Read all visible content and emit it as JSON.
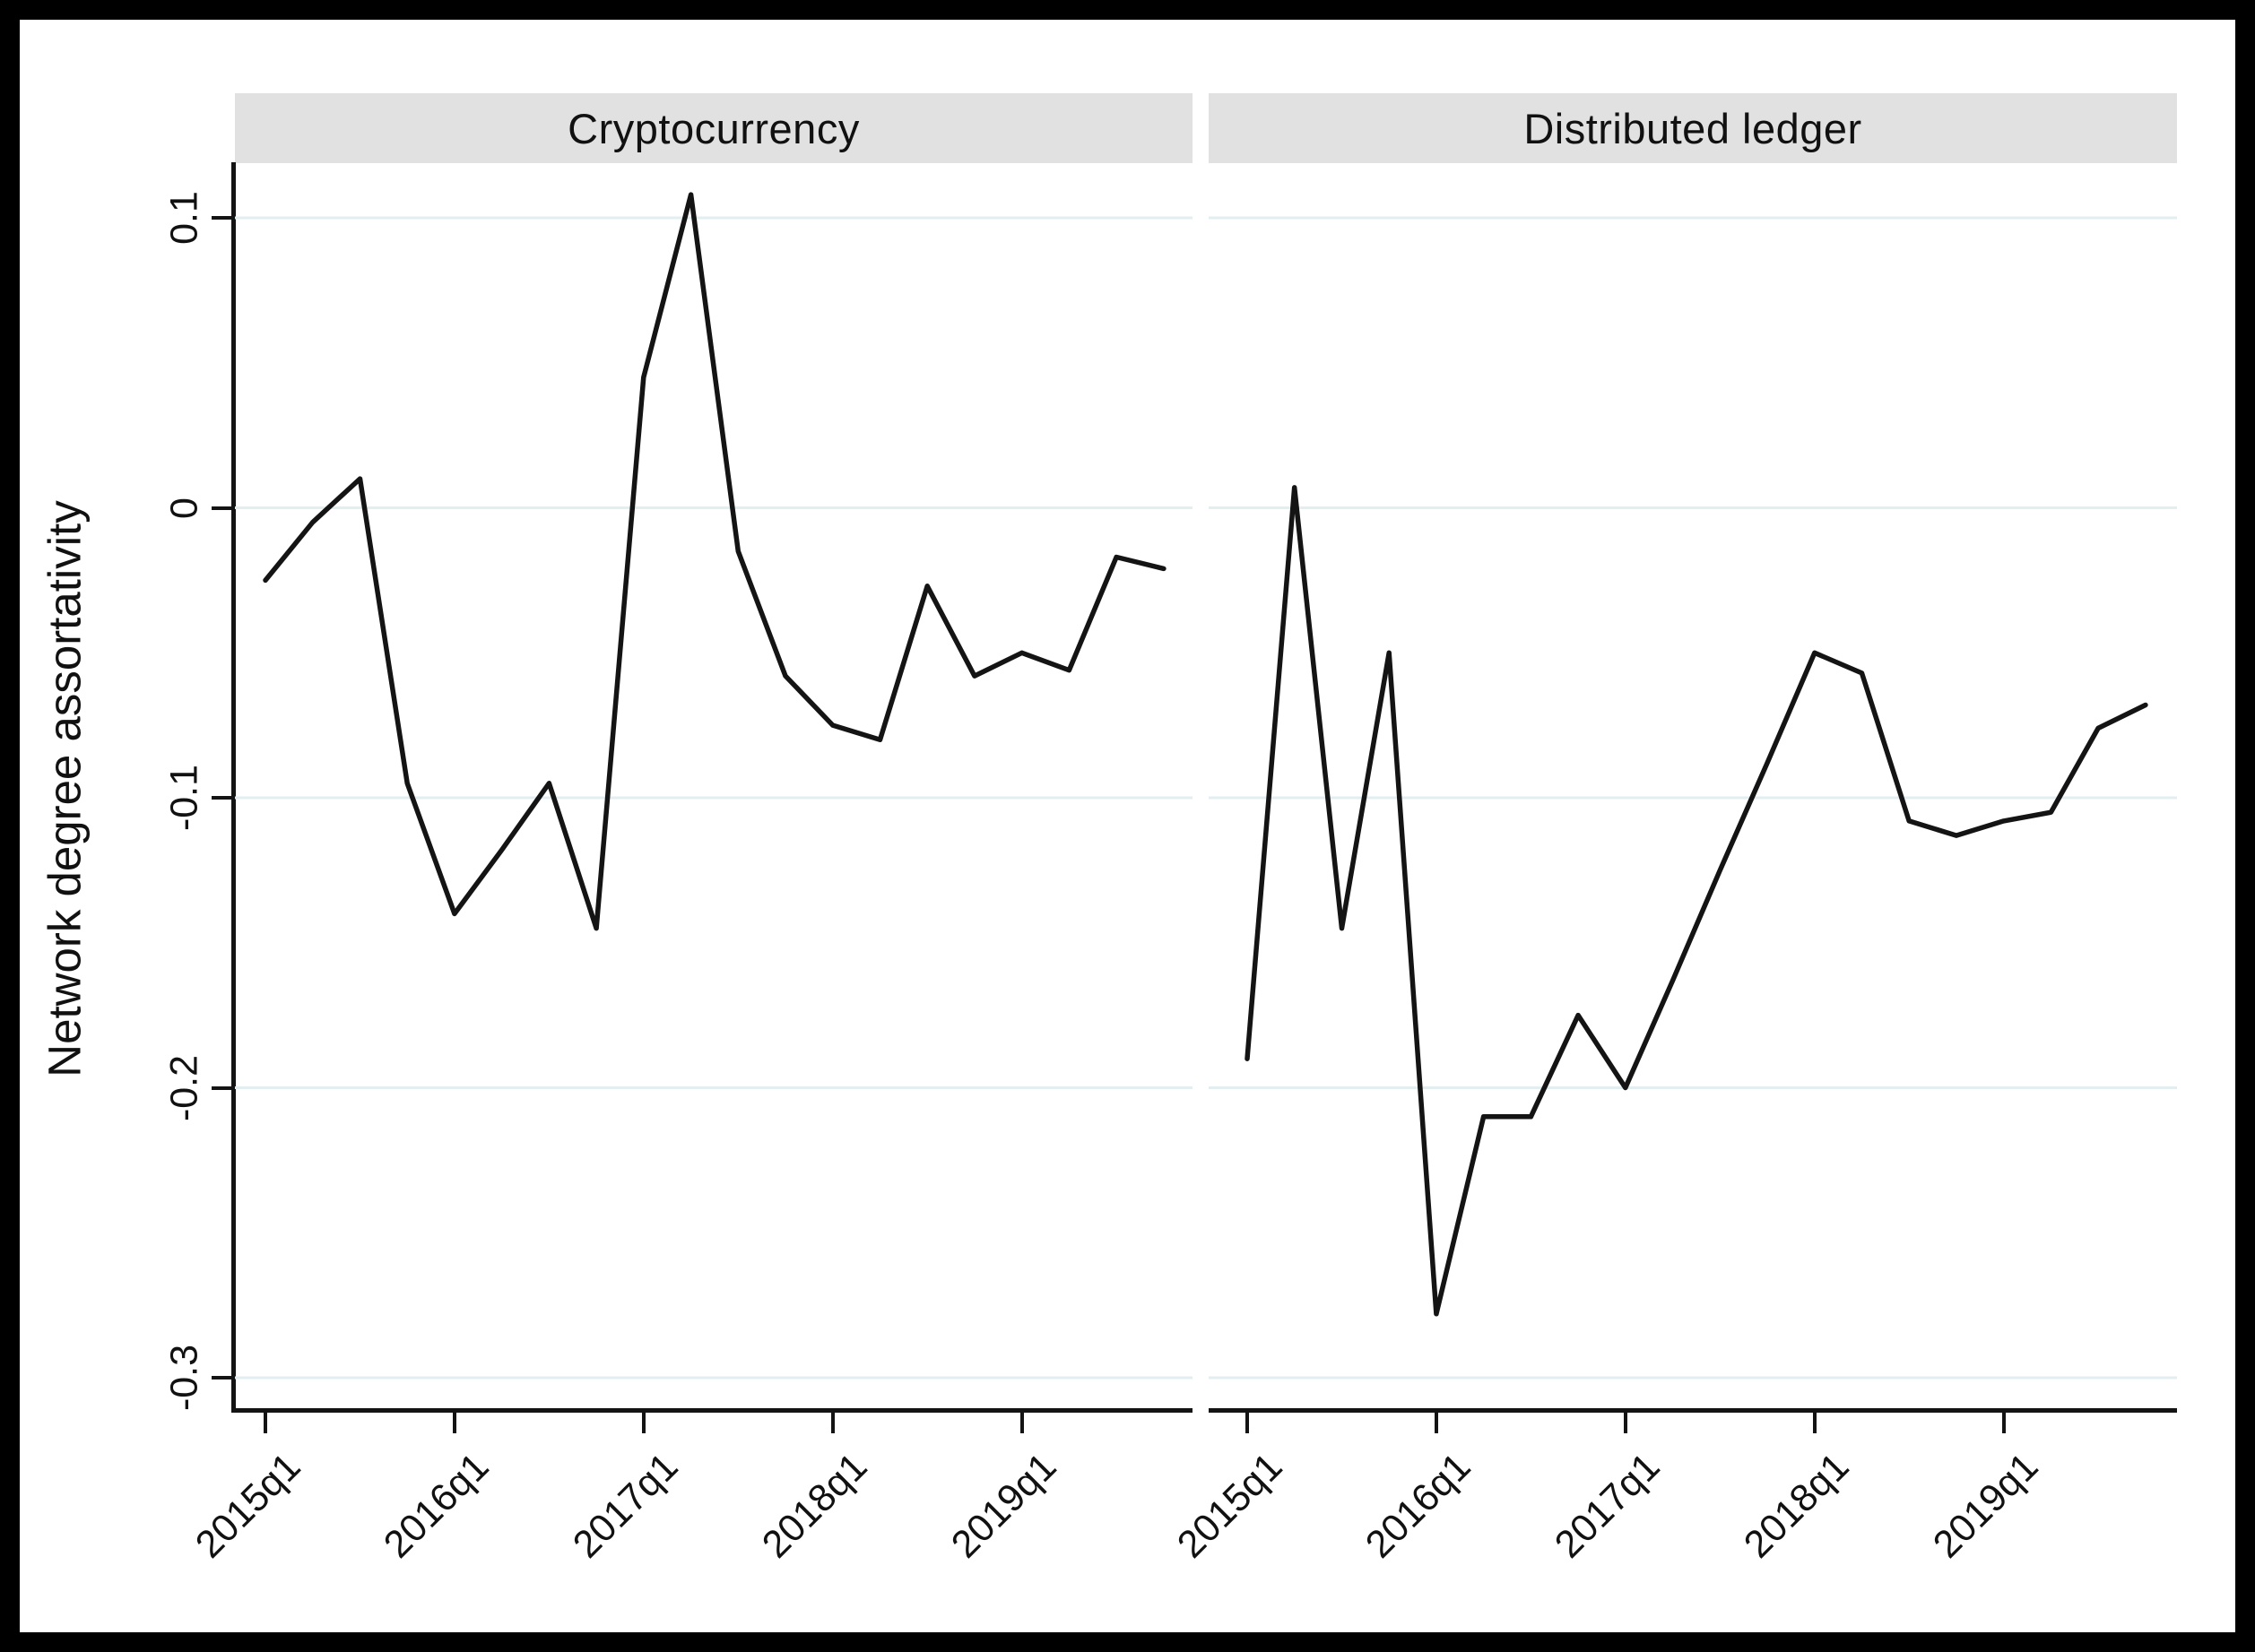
{
  "figure": {
    "ylabel": "Network degree assortativity",
    "panels": [
      {
        "title": "Cryptocurrency"
      },
      {
        "title": "Distributed ledger"
      }
    ]
  },
  "axes": {
    "y_ticks": [
      "0.1",
      "0",
      "-0.1",
      "-0.2",
      "-0.3"
    ],
    "x_ticks": [
      "2015q1",
      "2016q1",
      "2017q1",
      "2018q1",
      "2019q1"
    ]
  },
  "colors": {
    "line": "#141414",
    "grid": "#e3eef1",
    "band": "#e1e1e1"
  },
  "chart_data": {
    "type": "line",
    "title": "",
    "xlabel": "",
    "ylabel": "Network degree assortativity",
    "ylim": [
      -0.31,
      0.13
    ],
    "y_tick_values": [
      0.1,
      0,
      -0.1,
      -0.2,
      -0.3
    ],
    "y_tick_labels": [
      "0.1",
      "0",
      "-0.1",
      "-0.2",
      "-0.3"
    ],
    "x_tick_labels": [
      "2015q1",
      "2016q1",
      "2017q1",
      "2018q1",
      "2019q1"
    ],
    "grid": "horizontal",
    "legend_position": "none",
    "panel_titles": [
      "Cryptocurrency",
      "Distributed ledger"
    ],
    "categories": [
      "2015q1",
      "2015q2",
      "2015q3",
      "2015q4",
      "2016q1",
      "2016q2",
      "2016q3",
      "2016q4",
      "2017q1",
      "2017q2",
      "2017q3",
      "2017q4",
      "2018q1",
      "2018q2",
      "2018q3",
      "2018q4",
      "2019q1",
      "2019q2",
      "2019q3",
      "2019q4"
    ],
    "series": [
      {
        "name": "Cryptocurrency",
        "values": [
          -0.025,
          -0.005,
          0.01,
          -0.095,
          -0.14,
          -0.118,
          -0.095,
          -0.145,
          0.045,
          0.108,
          -0.015,
          -0.058,
          -0.075,
          -0.08,
          -0.027,
          -0.058,
          -0.05,
          -0.056,
          -0.017,
          -0.021
        ]
      },
      {
        "name": "Distributed ledger",
        "values": [
          -0.19,
          0.007,
          -0.145,
          -0.05,
          -0.278,
          -0.21,
          -0.21,
          -0.175,
          -0.2,
          -0.163,
          -0.125,
          -0.088,
          -0.05,
          -0.057,
          -0.108,
          -0.113,
          -0.108,
          -0.105,
          -0.076,
          -0.068
        ]
      }
    ]
  }
}
